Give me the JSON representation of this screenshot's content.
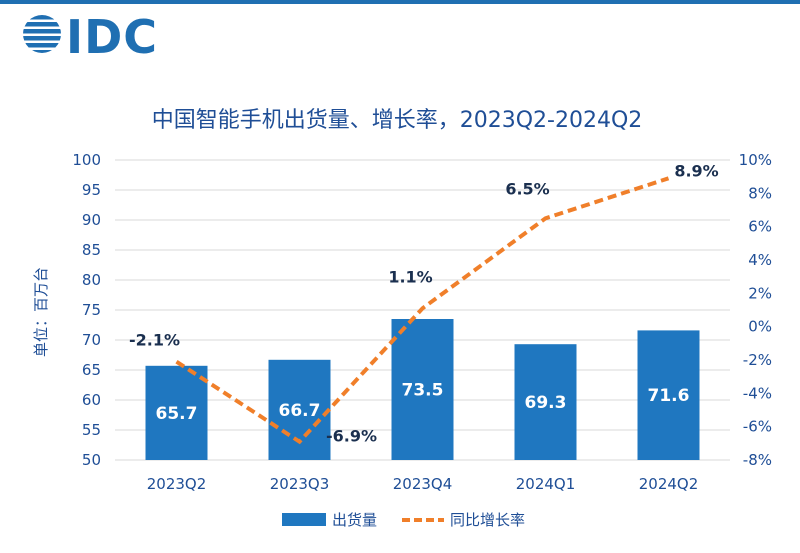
{
  "logo": {
    "text": "IDC",
    "color": "#1f6fb2"
  },
  "chart_data": {
    "type": "bar",
    "title": "中国智能手机出货量、增长率，2023Q2-2024Q2",
    "ylabel": "单位：百万台",
    "categories": [
      "2023Q2",
      "2023Q3",
      "2023Q4",
      "2024Q1",
      "2024Q2"
    ],
    "ylim": [
      50,
      100
    ],
    "y_ticks": [
      "100",
      "95",
      "90",
      "85",
      "80",
      "75",
      "70",
      "65",
      "60",
      "55",
      "50"
    ],
    "y2lim": [
      -8,
      10
    ],
    "y2_ticks": [
      "10%",
      "8%",
      "6%",
      "4%",
      "2%",
      "0%",
      "-2%",
      "-4%",
      "-6%",
      "-8%"
    ],
    "grid": true,
    "legend_position": "bottom",
    "series": [
      {
        "name": "出货量",
        "type": "bar",
        "axis": "left",
        "color": "#1f77c0",
        "values": [
          65.7,
          66.7,
          73.5,
          69.3,
          71.6
        ],
        "labels": [
          "65.7",
          "66.7",
          "73.5",
          "69.3",
          "71.6"
        ]
      },
      {
        "name": "同比增长率",
        "type": "line",
        "axis": "right",
        "style": "dashed",
        "color": "#f07f2a",
        "values": [
          -2.1,
          -6.9,
          1.1,
          6.5,
          8.9
        ],
        "labels": [
          "-2.1%",
          "-6.9%",
          "1.1%",
          "6.5%",
          "8.9%"
        ]
      }
    ]
  }
}
